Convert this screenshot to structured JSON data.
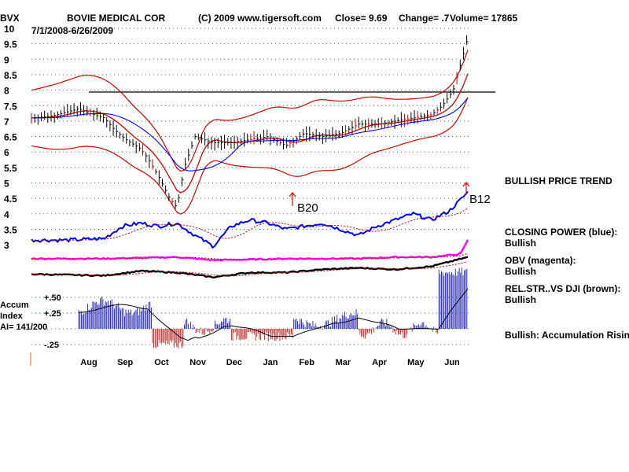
{
  "header": {
    "ticker": "BVX",
    "company": "BOVIE MEDICAL COR",
    "copyright": "(C) 2009 www.tigersoft.com",
    "close": "Close=  9.69",
    "change": "Change= .7",
    "volume": "Volume= 17865",
    "date_range": "7/1/2008-6/26/2009"
  },
  "panel_labels": {
    "bullish_trend": "BULLISH PRICE TREND",
    "closing_power": "CLOSING POWER (blue):",
    "closing_power_status": "Bullish",
    "obv": "OBV (magenta):",
    "obv_status": "Bullish",
    "relstr": "REL.STR..VS DJI (brown):",
    "relstr_status": "Bullish",
    "accum_status": "Bullish: Accumulation Rising"
  },
  "accum_labels": {
    "title1": "Accum",
    "title2": "Index",
    "ai": "AI= 141/200"
  },
  "signals": [
    {
      "label": "B20",
      "month": "Jan",
      "price": 4.95
    },
    {
      "label": "B12",
      "month": "Jun",
      "price": 5.25
    }
  ],
  "chart_data": {
    "type": "line",
    "title": "BOVIE MEDICAL COR",
    "x_months": [
      "Aug",
      "Sep",
      "Oct",
      "Nov",
      "Dec",
      "Jan",
      "Feb",
      "Mar",
      "Apr",
      "May",
      "Jun"
    ],
    "y_ticks": [
      "10",
      "9.5",
      "9",
      "8.5",
      "8",
      "7.5",
      "7",
      "6.5",
      "6",
      "5.5",
      "5",
      "4.5",
      "4",
      "3.5",
      "3"
    ],
    "ylim": [
      3,
      10
    ],
    "accum_ticks": [
      "+.50",
      "+.25",
      "-.25"
    ],
    "resistance_level": 8.0,
    "series": [
      {
        "name": "Price (close)",
        "color": "#000000",
        "points": [
          [
            0,
            7.1
          ],
          [
            0.5,
            7.15
          ],
          [
            1,
            7.3
          ],
          [
            1.3,
            7.4
          ],
          [
            1.6,
            7.25
          ],
          [
            2,
            7.1
          ],
          [
            2.3,
            6.7
          ],
          [
            2.6,
            6.4
          ],
          [
            3,
            6.1
          ],
          [
            3.2,
            5.8
          ],
          [
            3.5,
            5.2
          ],
          [
            3.8,
            4.5
          ],
          [
            4,
            4.2
          ],
          [
            4.2,
            5.5
          ],
          [
            4.5,
            6.5
          ],
          [
            5,
            6.3
          ],
          [
            5.5,
            6.3
          ],
          [
            6,
            6.4
          ],
          [
            6.5,
            6.5
          ],
          [
            7,
            6.2
          ],
          [
            7.5,
            6.6
          ],
          [
            8,
            6.5
          ],
          [
            8.5,
            6.6
          ],
          [
            9,
            6.9
          ],
          [
            9.5,
            6.9
          ],
          [
            10,
            7.0
          ],
          [
            10.5,
            7.1
          ],
          [
            11,
            7.2
          ],
          [
            11.3,
            7.5
          ],
          [
            11.6,
            8.0
          ],
          [
            12,
            9.69
          ]
        ]
      },
      {
        "name": "Closing Power",
        "color": "#0000ff",
        "points": [
          [
            0,
            3.15
          ],
          [
            1,
            3.15
          ],
          [
            2,
            3.2
          ],
          [
            2.5,
            3.6
          ],
          [
            3,
            3.7
          ],
          [
            3.5,
            3.6
          ],
          [
            4,
            3.7
          ],
          [
            4.5,
            3.3
          ],
          [
            5,
            2.95
          ],
          [
            5.5,
            3.6
          ],
          [
            6,
            3.8
          ],
          [
            6.5,
            3.7
          ],
          [
            7,
            3.5
          ],
          [
            7.5,
            3.6
          ],
          [
            8,
            3.7
          ],
          [
            8.5,
            3.5
          ],
          [
            9,
            3.3
          ],
          [
            9.5,
            3.6
          ],
          [
            10,
            3.8
          ],
          [
            10.5,
            4.0
          ],
          [
            11,
            3.8
          ],
          [
            11.5,
            4.1
          ],
          [
            12,
            4.7
          ]
        ]
      },
      {
        "name": "OBV",
        "color": "#ff00ff",
        "points": [
          [
            0,
            2.55
          ],
          [
            2,
            2.55
          ],
          [
            4,
            2.6
          ],
          [
            5,
            2.5
          ],
          [
            7,
            2.55
          ],
          [
            9,
            2.55
          ],
          [
            10,
            2.6
          ],
          [
            11,
            2.6
          ],
          [
            11.8,
            2.7
          ],
          [
            12,
            3.15
          ]
        ]
      },
      {
        "name": "Rel. Str. vs DJI",
        "color": "#000000",
        "points": [
          [
            0,
            2.05
          ],
          [
            2,
            2.0
          ],
          [
            3,
            2.15
          ],
          [
            4,
            2.1
          ],
          [
            5,
            1.95
          ],
          [
            6,
            2.1
          ],
          [
            7,
            2.1
          ],
          [
            8,
            2.2
          ],
          [
            9,
            2.25
          ],
          [
            10,
            2.2
          ],
          [
            11,
            2.3
          ],
          [
            12,
            2.6
          ]
        ]
      }
    ]
  }
}
